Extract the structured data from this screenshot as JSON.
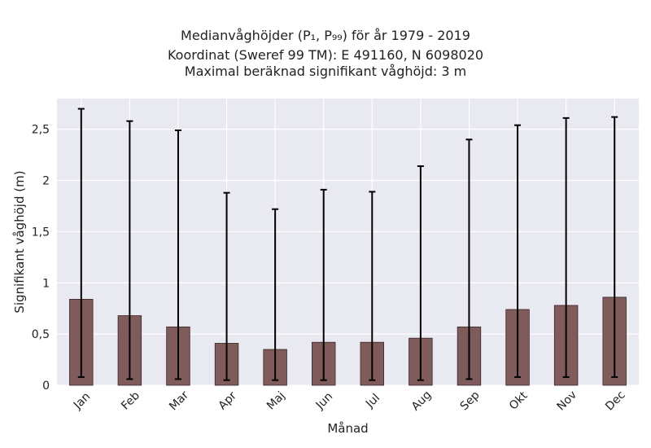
{
  "chart_data": {
    "type": "bar",
    "title_lines": [
      "Medianvåghöjder (P₁, P₉₉) för år 1979 - 2019",
      "Koordinat (Sweref 99 TM): E 491160, N 6098020",
      "Maximal beräknad signifikant våghöjd: 3 m"
    ],
    "xlabel": "Månad",
    "ylabel": "Signifikant våghöjd (m)",
    "categories": [
      "Jan",
      "Feb",
      "Mar",
      "Apr",
      "Maj",
      "Jun",
      "Jul",
      "Aug",
      "Sep",
      "Okt",
      "Nov",
      "Dec"
    ],
    "values": [
      0.84,
      0.68,
      0.57,
      0.41,
      0.35,
      0.42,
      0.42,
      0.46,
      0.57,
      0.74,
      0.78,
      0.86
    ],
    "error_low": [
      0.08,
      0.06,
      0.06,
      0.05,
      0.05,
      0.05,
      0.05,
      0.05,
      0.06,
      0.08,
      0.08,
      0.08
    ],
    "error_high": [
      2.7,
      2.58,
      2.49,
      1.88,
      1.72,
      1.91,
      1.89,
      2.14,
      2.4,
      2.54,
      2.61,
      2.62
    ],
    "ylim": [
      0,
      2.8
    ],
    "yticks": [
      0,
      0.5,
      1,
      1.5,
      2,
      2.5
    ],
    "ytick_labels": [
      "0",
      "0,5",
      "1",
      "1,5",
      "2",
      "2,5"
    ],
    "grid": true,
    "bar_color": "#7f5b5b",
    "bar_edge_color": "#3a2626",
    "plot_bg": "#e9e9f1",
    "grid_color": "#ffffff",
    "error_color": "#000000"
  }
}
